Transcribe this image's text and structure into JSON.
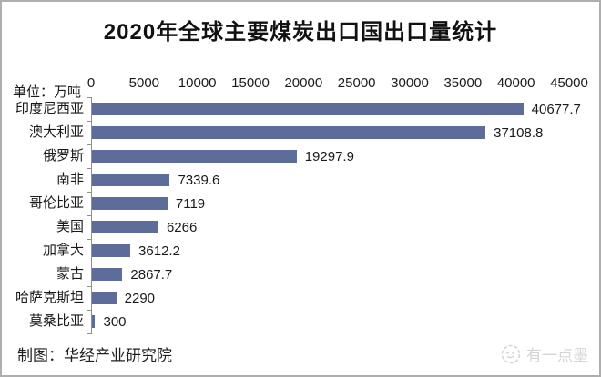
{
  "title": "2020年全球主要煤炭出口国出口量统计",
  "unit_label": "单位：万吨",
  "footer": {
    "credit": "制图：华经产业研究院"
  },
  "watermark": {
    "text": "有一点墨",
    "logo": "ink-dot-face-logo"
  },
  "colors": {
    "bar": "#5d6c99",
    "axis": "#8f8f8f",
    "frame_border": "#aeaeae",
    "watermark": "#d5d5d5",
    "text": "#1a1a1a"
  },
  "chart_data": {
    "type": "bar",
    "orientation": "horizontal",
    "title": "2020年全球主要煤炭出口国出口量统计",
    "xlabel": "",
    "ylabel": "",
    "unit": "万吨",
    "categories": [
      "印度尼西亚",
      "澳大利亚",
      "俄罗斯",
      "南非",
      "哥伦比亚",
      "美国",
      "加拿大",
      "蒙古",
      "哈萨克斯坦",
      "莫桑比亚"
    ],
    "values": [
      40677.7,
      37108.8,
      19297.9,
      7339.6,
      7119,
      6266,
      3612.2,
      2867.7,
      2290,
      300
    ],
    "value_labels": [
      "40677.7",
      "37108.8",
      "19297.9",
      "7339.6",
      "7119",
      "6266",
      "3612.2",
      "2867.7",
      "2290",
      "300"
    ],
    "xlim": [
      0,
      45000
    ],
    "x_ticks": [
      0,
      5000,
      10000,
      15000,
      20000,
      25000,
      30000,
      35000,
      40000,
      45000
    ],
    "axis_position": "top",
    "grid": false,
    "legend": false,
    "data_labels": true
  }
}
